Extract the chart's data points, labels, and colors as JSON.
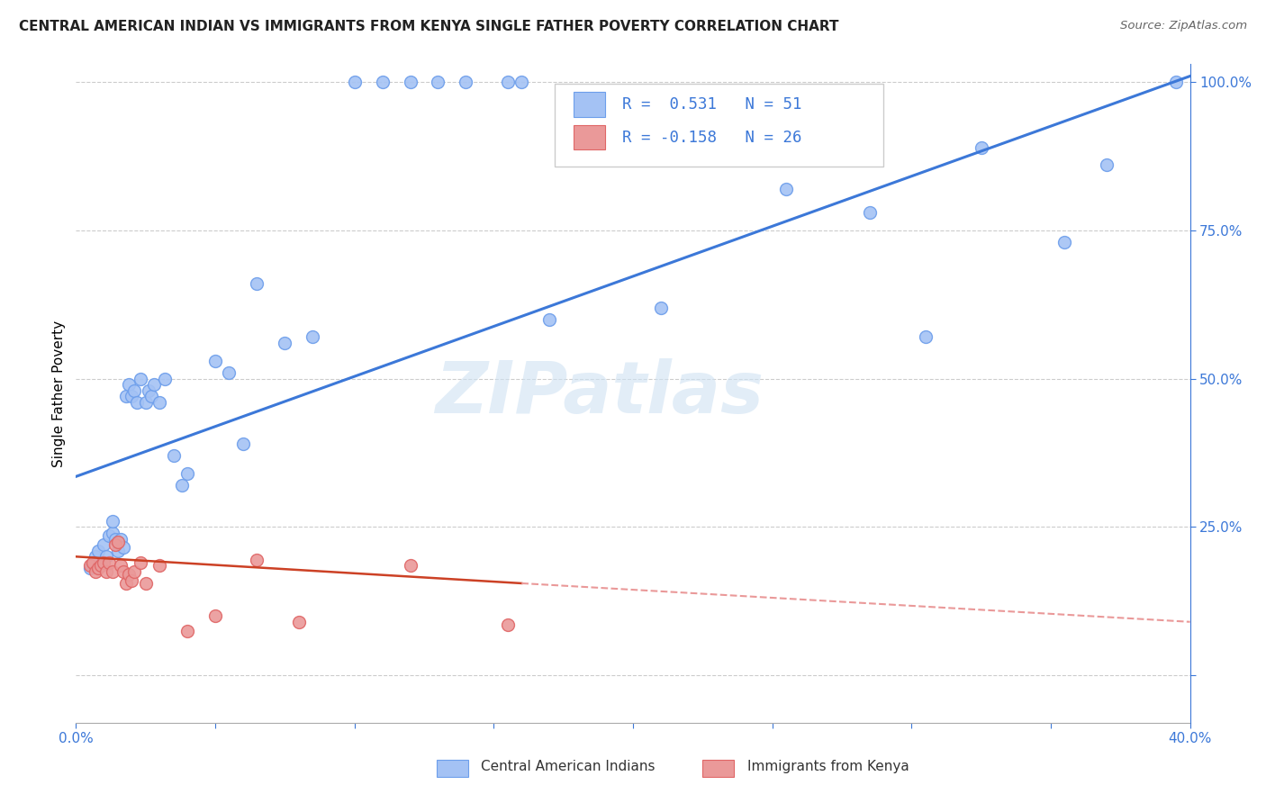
{
  "title": "CENTRAL AMERICAN INDIAN VS IMMIGRANTS FROM KENYA SINGLE FATHER POVERTY CORRELATION CHART",
  "source": "Source: ZipAtlas.com",
  "ylabel": "Single Father Poverty",
  "x_min": 0.0,
  "x_max": 0.4,
  "y_min": -0.08,
  "y_max": 1.03,
  "x_ticks": [
    0.0,
    0.05,
    0.1,
    0.15,
    0.2,
    0.25,
    0.3,
    0.35,
    0.4
  ],
  "y_ticks": [
    0.0,
    0.25,
    0.5,
    0.75,
    1.0
  ],
  "y_tick_labels": [
    "",
    "25.0%",
    "50.0%",
    "75.0%",
    "100.0%"
  ],
  "blue_R": 0.531,
  "blue_N": 51,
  "pink_R": -0.158,
  "pink_N": 26,
  "blue_color": "#a4c2f4",
  "blue_edge_color": "#6d9eeb",
  "pink_color": "#ea9999",
  "pink_edge_color": "#e06666",
  "blue_line_color": "#3c78d8",
  "pink_line_color": "#cc4125",
  "pink_dash_color": "#ea9999",
  "grid_color": "#b7b7b7",
  "watermark_color": "#cfe2f3",
  "watermark": "ZIPatlas",
  "legend_label_blue": "Central American Indians",
  "legend_label_pink": "Immigrants from Kenya",
  "blue_scatter_x": [
    0.005,
    0.007,
    0.008,
    0.009,
    0.01,
    0.011,
    0.012,
    0.013,
    0.013,
    0.014,
    0.015,
    0.015,
    0.016,
    0.017,
    0.018,
    0.019,
    0.02,
    0.021,
    0.022,
    0.023,
    0.025,
    0.026,
    0.027,
    0.028,
    0.03,
    0.032,
    0.035,
    0.038,
    0.04,
    0.05,
    0.055,
    0.06,
    0.065,
    0.075,
    0.085,
    0.1,
    0.11,
    0.12,
    0.13,
    0.14,
    0.155,
    0.16,
    0.17,
    0.21,
    0.255,
    0.285,
    0.305,
    0.325,
    0.355,
    0.37,
    0.395
  ],
  "blue_scatter_y": [
    0.18,
    0.2,
    0.21,
    0.185,
    0.22,
    0.2,
    0.235,
    0.24,
    0.26,
    0.23,
    0.21,
    0.225,
    0.23,
    0.215,
    0.47,
    0.49,
    0.47,
    0.48,
    0.46,
    0.5,
    0.46,
    0.48,
    0.47,
    0.49,
    0.46,
    0.5,
    0.37,
    0.32,
    0.34,
    0.53,
    0.51,
    0.39,
    0.66,
    0.56,
    0.57,
    1.0,
    1.0,
    1.0,
    1.0,
    1.0,
    1.0,
    1.0,
    0.6,
    0.62,
    0.82,
    0.78,
    0.57,
    0.89,
    0.73,
    0.86,
    1.0
  ],
  "pink_scatter_x": [
    0.005,
    0.006,
    0.007,
    0.008,
    0.009,
    0.01,
    0.011,
    0.012,
    0.013,
    0.014,
    0.015,
    0.016,
    0.017,
    0.018,
    0.019,
    0.02,
    0.021,
    0.023,
    0.025,
    0.03,
    0.04,
    0.05,
    0.065,
    0.08,
    0.12,
    0.155
  ],
  "pink_scatter_y": [
    0.185,
    0.19,
    0.175,
    0.18,
    0.185,
    0.19,
    0.175,
    0.19,
    0.175,
    0.22,
    0.225,
    0.185,
    0.175,
    0.155,
    0.17,
    0.16,
    0.175,
    0.19,
    0.155,
    0.185,
    0.075,
    0.1,
    0.195,
    0.09,
    0.185,
    0.085
  ],
  "blue_line_x": [
    0.0,
    0.4
  ],
  "blue_line_y": [
    0.335,
    1.01
  ],
  "pink_solid_line_x": [
    0.0,
    0.16
  ],
  "pink_solid_line_y": [
    0.2,
    0.155
  ],
  "pink_dash_line_x": [
    0.16,
    0.4
  ],
  "pink_dash_line_y": [
    0.155,
    0.09
  ]
}
